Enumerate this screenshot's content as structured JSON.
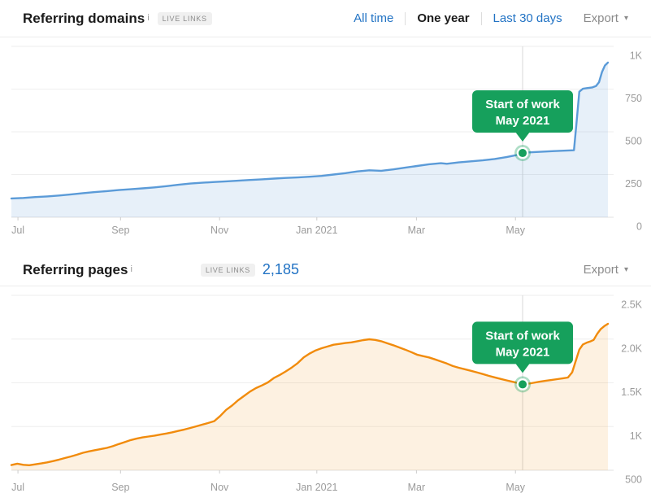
{
  "charts_page": {
    "header1": {
      "title": "Referring domains",
      "info": "i",
      "badge": "LIVE LINKS",
      "tabs": [
        {
          "label": "All time",
          "active": false
        },
        {
          "label": "One year",
          "active": true
        },
        {
          "label": "Last 30 days",
          "active": false
        }
      ],
      "export_label": "Export",
      "caret": "▾"
    },
    "header2": {
      "title": "Referring pages",
      "info": "i",
      "badge": "LIVE LINKS",
      "count": "2,185",
      "export_label": "Export",
      "caret": "▾"
    }
  },
  "colors": {
    "link_blue": "#2273c4",
    "text_dark": "#1b1b1b",
    "axis_label": "#9b9b9b",
    "gridline": "#eeeeee",
    "axis_line": "#e0e0e0",
    "annotation_green": "#16a05c",
    "domains_line_blue": "#5b9bd8",
    "pages_line_orange": "#f18b0c",
    "badge_bg": "#f0f0f0"
  },
  "chart_data": [
    {
      "type": "area",
      "title": "Referring domains",
      "legend": "referring domains (live links)",
      "x_ticks": [
        {
          "frac": 1.1,
          "label": "Jul"
        },
        {
          "frac": 18.3,
          "label": "Sep"
        },
        {
          "frac": 34.9,
          "label": "Nov"
        },
        {
          "frac": 51.2,
          "label": "Jan 2021"
        },
        {
          "frac": 67.9,
          "label": "Mar"
        },
        {
          "frac": 84.5,
          "label": "May"
        }
      ],
      "y_ticks": [
        "1K",
        "750",
        "500",
        "250",
        "0"
      ],
      "y_min": 0,
      "y_max": 1000,
      "line_color": "#5b9bd8",
      "fill_color": "rgba(91,155,216,0.15)",
      "marker_index": 44,
      "annotation": {
        "line1": "Start of work",
        "line2": "May 2021",
        "color": "#16a05c",
        "x_label": "May 2021",
        "value_at_marker": 376
      },
      "points": [
        [
          0,
          110
        ],
        [
          2,
          113
        ],
        [
          4,
          118
        ],
        [
          6,
          122
        ],
        [
          8,
          127
        ],
        [
          10,
          134
        ],
        [
          12,
          141
        ],
        [
          14,
          147
        ],
        [
          16,
          153
        ],
        [
          18,
          159
        ],
        [
          20,
          164
        ],
        [
          22,
          169
        ],
        [
          24,
          175
        ],
        [
          26,
          182
        ],
        [
          28,
          190
        ],
        [
          30,
          197
        ],
        [
          32,
          202
        ],
        [
          34,
          206
        ],
        [
          36,
          210
        ],
        [
          38,
          214
        ],
        [
          40,
          218
        ],
        [
          42,
          222
        ],
        [
          44,
          226
        ],
        [
          46,
          230
        ],
        [
          48,
          233
        ],
        [
          50,
          237
        ],
        [
          52,
          242
        ],
        [
          54,
          250
        ],
        [
          56,
          258
        ],
        [
          58,
          268
        ],
        [
          60,
          275
        ],
        [
          62,
          272
        ],
        [
          64,
          280
        ],
        [
          66,
          290
        ],
        [
          68,
          300
        ],
        [
          70,
          310
        ],
        [
          72,
          316
        ],
        [
          73,
          313
        ],
        [
          75,
          321
        ],
        [
          77,
          327
        ],
        [
          79,
          333
        ],
        [
          81,
          341
        ],
        [
          83,
          352
        ],
        [
          85,
          366
        ],
        [
          85.7,
          376
        ],
        [
          87,
          380
        ],
        [
          89,
          384
        ],
        [
          91,
          387
        ],
        [
          93,
          390
        ],
        [
          94.3,
          392
        ],
        [
          94.7,
          540
        ],
        [
          95.2,
          735
        ],
        [
          95.8,
          752
        ],
        [
          96.6,
          756
        ],
        [
          97.4,
          760
        ],
        [
          98,
          768
        ],
        [
          98.5,
          790
        ],
        [
          99,
          850
        ],
        [
          99.5,
          888
        ],
        [
          100,
          905
        ]
      ]
    },
    {
      "type": "area",
      "title": "Referring pages",
      "legend": "referring pages (live links)",
      "current_total": 2185,
      "x_ticks": [
        {
          "frac": 1.1,
          "label": "Jul"
        },
        {
          "frac": 18.3,
          "label": "Sep"
        },
        {
          "frac": 34.9,
          "label": "Nov"
        },
        {
          "frac": 51.2,
          "label": "Jan 2021"
        },
        {
          "frac": 67.9,
          "label": "Mar"
        },
        {
          "frac": 84.5,
          "label": "May"
        }
      ],
      "y_ticks": [
        "2.5K",
        "2.0K",
        "1.5K",
        "1K",
        "500"
      ],
      "y_min": 500,
      "y_max": 2500,
      "line_color": "#f18b0c",
      "fill_color": "rgba(241,139,12,0.12)",
      "marker_index": 86,
      "annotation": {
        "line1": "Start of work",
        "line2": "May 2021",
        "color": "#16a05c",
        "x_label": "May 2021",
        "value_at_marker": 1482
      },
      "points": [
        [
          0,
          560
        ],
        [
          1,
          575
        ],
        [
          2,
          562
        ],
        [
          3,
          558
        ],
        [
          4,
          568
        ],
        [
          5,
          578
        ],
        [
          6,
          590
        ],
        [
          7,
          605
        ],
        [
          8,
          622
        ],
        [
          9,
          640
        ],
        [
          10,
          658
        ],
        [
          11,
          678
        ],
        [
          12,
          700
        ],
        [
          13,
          716
        ],
        [
          14,
          730
        ],
        [
          15,
          743
        ],
        [
          16,
          756
        ],
        [
          17,
          775
        ],
        [
          18,
          800
        ],
        [
          19,
          822
        ],
        [
          20,
          845
        ],
        [
          21,
          862
        ],
        [
          22,
          876
        ],
        [
          23,
          886
        ],
        [
          24,
          896
        ],
        [
          25,
          908
        ],
        [
          26,
          920
        ],
        [
          27,
          934
        ],
        [
          28,
          950
        ],
        [
          29,
          966
        ],
        [
          30,
          984
        ],
        [
          31,
          1002
        ],
        [
          32,
          1022
        ],
        [
          33,
          1040
        ],
        [
          34,
          1062
        ],
        [
          35,
          1120
        ],
        [
          36,
          1190
        ],
        [
          37,
          1240
        ],
        [
          38,
          1300
        ],
        [
          39,
          1350
        ],
        [
          40,
          1400
        ],
        [
          41,
          1440
        ],
        [
          42,
          1470
        ],
        [
          43,
          1505
        ],
        [
          44,
          1555
        ],
        [
          45,
          1590
        ],
        [
          46,
          1630
        ],
        [
          47,
          1675
        ],
        [
          48,
          1725
        ],
        [
          49,
          1790
        ],
        [
          50,
          1835
        ],
        [
          51,
          1870
        ],
        [
          52,
          1895
        ],
        [
          53,
          1915
        ],
        [
          54,
          1935
        ],
        [
          55,
          1945
        ],
        [
          56,
          1955
        ],
        [
          57,
          1962
        ],
        [
          58,
          1975
        ],
        [
          59,
          1988
        ],
        [
          60,
          1998
        ],
        [
          61,
          1990
        ],
        [
          62,
          1975
        ],
        [
          63,
          1952
        ],
        [
          64,
          1930
        ],
        [
          65,
          1905
        ],
        [
          66,
          1880
        ],
        [
          67,
          1852
        ],
        [
          68,
          1822
        ],
        [
          69,
          1805
        ],
        [
          70,
          1790
        ],
        [
          71,
          1768
        ],
        [
          72,
          1745
        ],
        [
          73,
          1720
        ],
        [
          74,
          1692
        ],
        [
          75,
          1672
        ],
        [
          76,
          1655
        ],
        [
          77,
          1638
        ],
        [
          78,
          1620
        ],
        [
          79,
          1600
        ],
        [
          80,
          1580
        ],
        [
          81,
          1562
        ],
        [
          82,
          1545
        ],
        [
          83,
          1528
        ],
        [
          84,
          1512
        ],
        [
          85,
          1495
        ],
        [
          85.7,
          1482
        ],
        [
          86.5,
          1488
        ],
        [
          87.5,
          1500
        ],
        [
          88.5,
          1512
        ],
        [
          89.5,
          1522
        ],
        [
          90.5,
          1532
        ],
        [
          91.5,
          1542
        ],
        [
          92.5,
          1552
        ],
        [
          93.3,
          1560
        ],
        [
          94,
          1620
        ],
        [
          94.6,
          1750
        ],
        [
          95.2,
          1880
        ],
        [
          95.8,
          1938
        ],
        [
          96.4,
          1958
        ],
        [
          97,
          1972
        ],
        [
          97.6,
          1990
        ],
        [
          98.2,
          2060
        ],
        [
          98.8,
          2115
        ],
        [
          99.4,
          2148
        ],
        [
          100,
          2174
        ]
      ]
    }
  ]
}
